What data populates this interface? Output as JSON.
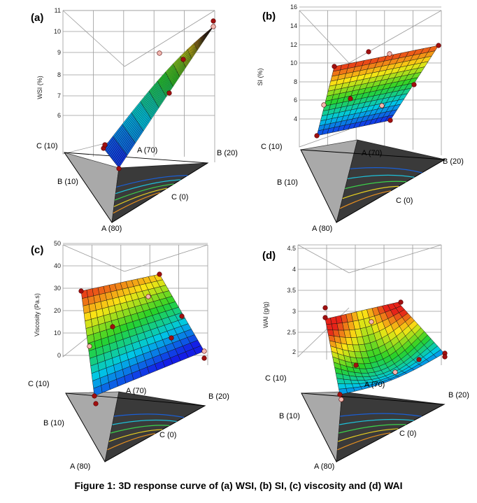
{
  "caption": "Figure 1: 3D response curve of (a) WSI, (b) SI, (c) viscosity and (d) WAI",
  "chart_data": [
    {
      "panel": "(a)",
      "type": "surface3d",
      "ylabel": "WSI (%)",
      "z_ticks": [
        "6",
        "7",
        "8",
        "9",
        "10",
        "11"
      ],
      "z_range": [
        5,
        11
      ],
      "axis_labels": {
        "a_top": "A (70)",
        "b_right": "B (20)",
        "c_left": "C (10)",
        "b_left": "B (10)",
        "c_bottom": "C (0)",
        "a_bottom": "A (80)"
      },
      "surface": "curved",
      "colors": {
        "high": "#e8281e",
        "low": "#1828e0"
      }
    },
    {
      "panel": "(b)",
      "type": "surface3d",
      "ylabel": "SI (%)",
      "z_ticks": [
        "4",
        "6",
        "8",
        "10",
        "12",
        "14",
        "16"
      ],
      "z_range": [
        3,
        16
      ],
      "axis_labels": {
        "a_top": "A (70)",
        "b_right": "B (20)",
        "c_left": "C (10)",
        "b_left": "B (10)",
        "c_bottom": "C (0)",
        "a_bottom": "A (80)"
      },
      "surface": "planar",
      "colors": {
        "high": "#e8281e",
        "low": "#1828e0"
      }
    },
    {
      "panel": "(c)",
      "type": "surface3d",
      "ylabel": "Viscosity (Pa.s)",
      "z_ticks": [
        "0",
        "10",
        "20",
        "30",
        "40",
        "50"
      ],
      "z_range": [
        -5,
        50
      ],
      "axis_labels": {
        "a_top": "A (70)",
        "b_right": "B (20)",
        "c_left": "C (10)",
        "b_left": "B (10)",
        "c_bottom": "C (0)",
        "a_bottom": "A (80)"
      },
      "surface": "planar",
      "colors": {
        "high": "#e8281e",
        "low": "#1828e0"
      }
    },
    {
      "panel": "(d)",
      "type": "surface3d",
      "ylabel": "WAI (g/g)",
      "z_ticks": [
        "2",
        "2.5",
        "3",
        "3.5",
        "4",
        "4.5"
      ],
      "z_range": [
        1.8,
        4.5
      ],
      "axis_labels": {
        "a_top": "A (70)",
        "b_right": "B (20)",
        "c_left": "C (10)",
        "b_left": "B (10)",
        "c_bottom": "C (0)",
        "a_bottom": "A (80)"
      },
      "surface": "saddle",
      "colors": {
        "high": "#e8281e",
        "low": "#1828e0"
      }
    }
  ]
}
